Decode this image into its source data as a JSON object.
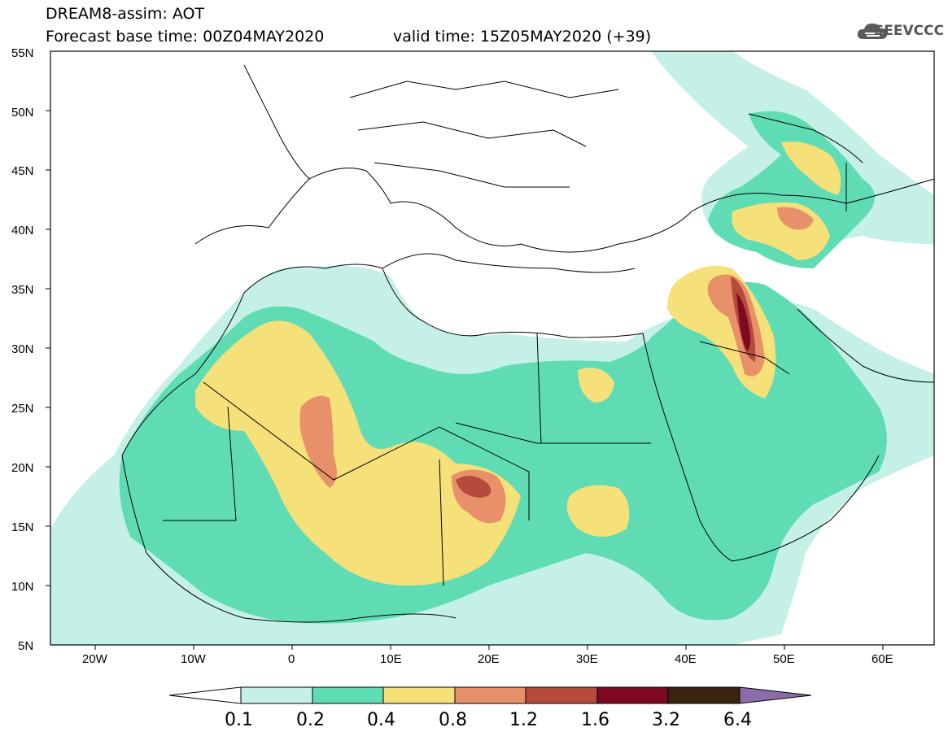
{
  "header": {
    "model_line": "DREAM8-assim: AOT",
    "base_time_line": "Forecast base time: 00Z04MAY2020",
    "valid_time_line": "valid time: 15Z05MAY2020 (+39)",
    "logo_text": "SEEVCCC",
    "logo_icon": "cloud-logo-icon"
  },
  "map": {
    "lat_labels": [
      "55N",
      "50N",
      "45N",
      "40N",
      "35N",
      "30N",
      "25N",
      "20N",
      "15N",
      "10N",
      "5N"
    ],
    "lon_labels": [
      "20W",
      "10W",
      "0",
      "10E",
      "20E",
      "30E",
      "40E",
      "50E",
      "60E"
    ],
    "extent": {
      "lon_min": -25,
      "lon_max": 65,
      "lat_min": 5,
      "lat_max": 55
    }
  },
  "colorbar": {
    "labels": [
      "0.1",
      "0.2",
      "0.4",
      "0.8",
      "1.2",
      "1.6",
      "3.2",
      "6.4"
    ],
    "colors": [
      "#ffffff",
      "#c4f0e8",
      "#5fdcb4",
      "#f5e07a",
      "#e8906a",
      "#b44b3c",
      "#7e0a22",
      "#3a2410",
      "#8c6ca8"
    ]
  }
}
